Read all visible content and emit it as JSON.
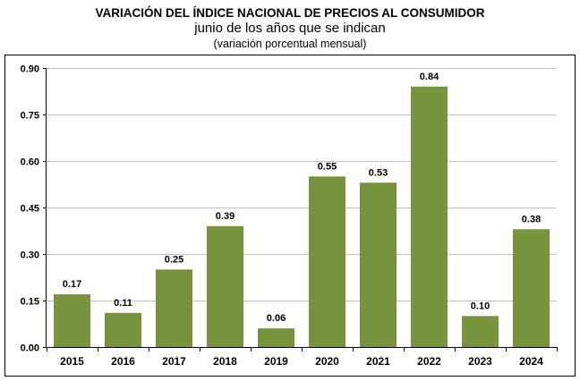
{
  "header": {
    "title": "VARIACIÓN DEL ÍNDICE NACIONAL DE PRECIOS AL CONSUMIDOR",
    "subtitle": "junio de los años que se indican",
    "subtitle2": "(variación porcentual mensual)"
  },
  "colors": {
    "bar": "#77933C",
    "grid": "#C0C0C0",
    "border": "#000000"
  },
  "chart_data": {
    "type": "bar",
    "title": "VARIACIÓN DEL ÍNDICE NACIONAL DE PRECIOS AL CONSUMIDOR",
    "subtitle": "junio de los años que se indican (variación porcentual mensual)",
    "xlabel": "",
    "ylabel": "",
    "categories": [
      "2015",
      "2016",
      "2017",
      "2018",
      "2019",
      "2020",
      "2021",
      "2022",
      "2023",
      "2024"
    ],
    "values": [
      0.17,
      0.11,
      0.25,
      0.39,
      0.06,
      0.55,
      0.53,
      0.84,
      0.1,
      0.38
    ],
    "data_labels": [
      "0.17",
      "0.11",
      "0.25",
      "0.39",
      "0.06",
      "0.55",
      "0.53",
      "0.84",
      "0.10",
      "0.38"
    ],
    "ylim": [
      0,
      0.9
    ],
    "yticks": [
      0,
      0.15,
      0.3,
      0.45,
      0.6,
      0.75,
      0.9
    ],
    "ytick_labels": [
      "0.00",
      "0.15",
      "0.30",
      "0.45",
      "0.60",
      "0.75",
      "0.90"
    ],
    "grid": true,
    "legend": "none"
  }
}
